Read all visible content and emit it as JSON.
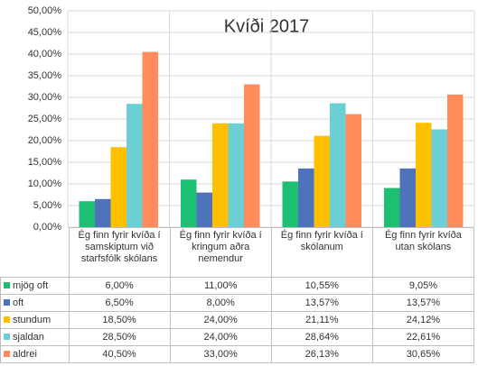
{
  "chart_data": {
    "type": "bar",
    "title": "Kvíði 2017",
    "categories": [
      "Ég finn fyrir kvíða í samskiptum við starfsfólk skólans",
      "Ég finn fyrir kvíða í kringum aðra nemendur",
      "Ég finn fyrir kvíða í skólanum",
      "Ég finn fyrir kvíða utan skólans"
    ],
    "series": [
      {
        "name": "mjög oft",
        "color": "#1dbf73",
        "values": [
          6.0,
          11.0,
          10.55,
          9.05
        ],
        "value_labels": [
          "6,00%",
          "11,00%",
          "10,55%",
          "9,05%"
        ]
      },
      {
        "name": "oft",
        "color": "#4f72bd",
        "values": [
          6.5,
          8.0,
          13.57,
          13.57
        ],
        "value_labels": [
          "6,50%",
          "8,00%",
          "13,57%",
          "13,57%"
        ]
      },
      {
        "name": "stundum",
        "color": "#ffc000",
        "values": [
          18.5,
          24.0,
          21.11,
          24.12
        ],
        "value_labels": [
          "18,50%",
          "24,00%",
          "21,11%",
          "24,12%"
        ]
      },
      {
        "name": "sjaldan",
        "color": "#6ccfd6",
        "values": [
          28.5,
          24.0,
          28.64,
          22.61
        ],
        "value_labels": [
          "28,50%",
          "24,00%",
          "28,64%",
          "22,61%"
        ]
      },
      {
        "name": "aldrei",
        "color": "#ff8c5a",
        "values": [
          40.5,
          33.0,
          26.13,
          30.65
        ],
        "value_labels": [
          "40,50%",
          "33,00%",
          "26,13%",
          "30,65%"
        ]
      }
    ],
    "ylim": [
      0,
      50
    ],
    "yticks": [
      {
        "value": 0,
        "label": "0,00%"
      },
      {
        "value": 5,
        "label": "5,00%"
      },
      {
        "value": 10,
        "label": "10,00%"
      },
      {
        "value": 15,
        "label": "15,00%"
      },
      {
        "value": 20,
        "label": "20,00%"
      },
      {
        "value": 25,
        "label": "25,00%"
      },
      {
        "value": 30,
        "label": "30,00%"
      },
      {
        "value": 35,
        "label": "35,00%"
      },
      {
        "value": 40,
        "label": "40,00%"
      },
      {
        "value": 45,
        "label": "45,00%"
      },
      {
        "value": 50,
        "label": "50,00%"
      }
    ],
    "grid": true
  }
}
